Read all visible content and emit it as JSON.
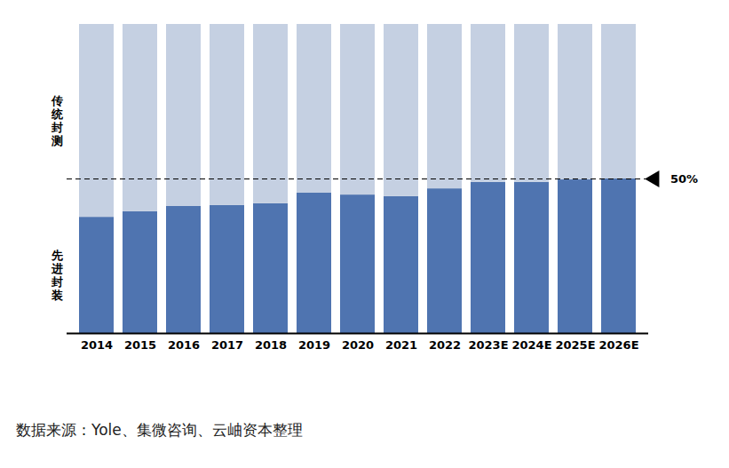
{
  "chart_data": {
    "type": "bar",
    "stacked": true,
    "categories": [
      "2014",
      "2015",
      "2016",
      "2017",
      "2018",
      "2019",
      "2020",
      "2021",
      "2022",
      "2023E",
      "2024E",
      "2025E",
      "2026E"
    ],
    "series": [
      {
        "name": "先进封装",
        "color": "#4f74b0",
        "values": [
          37.6,
          39.4,
          41.1,
          41.4,
          42.0,
          45.4,
          44.8,
          44.3,
          46.8,
          48.9,
          48.9,
          49.7,
          50.0
        ]
      },
      {
        "name": "传统封测",
        "color": "#c5d0e2",
        "values": [
          62.4,
          60.6,
          58.9,
          58.6,
          58.0,
          54.6,
          55.2,
          55.7,
          53.2,
          51.1,
          51.1,
          50.3,
          50.0
        ]
      }
    ],
    "ylim": [
      0,
      100
    ],
    "tick_labels": "x",
    "reference_line": {
      "value": 50,
      "label": "50%"
    },
    "source": "数据来源：Yole、集微咨询、云岫资本整理"
  }
}
